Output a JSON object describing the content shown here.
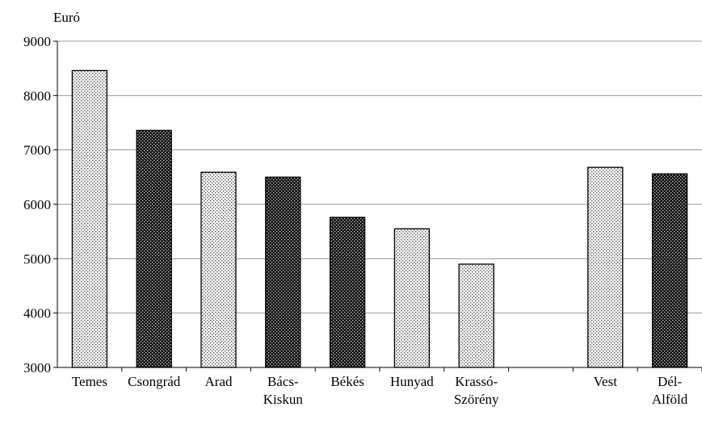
{
  "chart_data": {
    "type": "bar",
    "title": "",
    "ylabel": "Euró",
    "xlabel": "",
    "ylim": [
      3000,
      9000
    ],
    "yticks": [
      3000,
      4000,
      5000,
      6000,
      7000,
      8000,
      9000
    ],
    "grid": true,
    "categories": [
      {
        "lines": [
          "Temes"
        ],
        "value": 8460,
        "pattern": "light"
      },
      {
        "lines": [
          "Csongrád"
        ],
        "value": 7360,
        "pattern": "dark"
      },
      {
        "lines": [
          "Arad"
        ],
        "value": 6590,
        "pattern": "light"
      },
      {
        "lines": [
          "Bács-",
          "Kiskun"
        ],
        "value": 6500,
        "pattern": "dark"
      },
      {
        "lines": [
          "Békés"
        ],
        "value": 5760,
        "pattern": "dark"
      },
      {
        "lines": [
          "Hunyad"
        ],
        "value": 5550,
        "pattern": "light"
      },
      {
        "lines": [
          "Krassó-",
          "Szörény"
        ],
        "value": 4900,
        "pattern": "light"
      },
      {
        "lines": [
          ""
        ],
        "value": null,
        "pattern": "none"
      },
      {
        "lines": [
          "Vest"
        ],
        "value": 6680,
        "pattern": "light"
      },
      {
        "lines": [
          "Dél-",
          "Alföld"
        ],
        "value": 6560,
        "pattern": "dark"
      }
    ],
    "colors": {
      "light_fill": "#d9d9d9",
      "dark_fill": "#1a1a1a",
      "grid": "#999999",
      "axis": "#000000"
    }
  }
}
